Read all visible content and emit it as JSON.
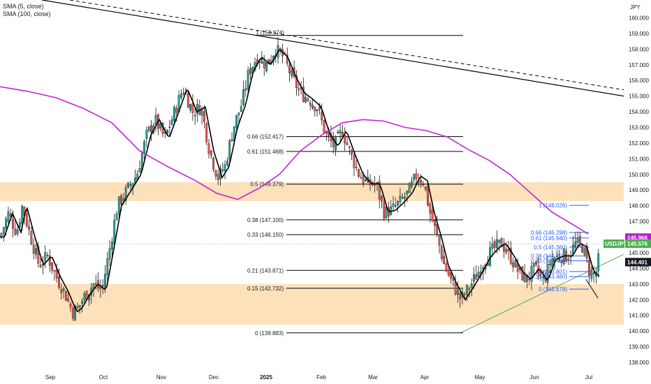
{
  "legend": {
    "sma5": "SMA (5, close)",
    "sma100": "SMA (100, close)"
  },
  "axis": {
    "unit": "JPY"
  },
  "colors": {
    "up": "#26a69a",
    "down": "#ef5350",
    "sma100": "#c026d3",
    "sma5": "#000000",
    "zone": "#fcdcae",
    "trend": "#4caf50",
    "fib_blue": "#2962ff",
    "tag_purple": "#b71cd4",
    "tag_green": "#4caf50",
    "tag_black": "#131722"
  },
  "chart_data": {
    "type": "candlestick",
    "symbol": "USDJPY",
    "ylim": [
      137.6,
      160.6
    ],
    "y_ticks": [
      "160.000",
      "159.000",
      "158.000",
      "157.000",
      "156.000",
      "155.000",
      "154.000",
      "153.000",
      "152.000",
      "151.000",
      "150.000",
      "149.000",
      "148.000",
      "147.000",
      "146.000",
      "145.000",
      "144.000",
      "143.000",
      "142.000",
      "141.000",
      "140.000",
      "139.000",
      "138.000"
    ],
    "x_labels": [
      {
        "label": "Sep",
        "t": 72
      },
      {
        "label": "Oct",
        "t": 148
      },
      {
        "label": "Nov",
        "t": 231
      },
      {
        "label": "Dec",
        "t": 306
      },
      {
        "label": "2025",
        "t": 381
      },
      {
        "label": "Feb",
        "t": 460
      },
      {
        "label": "Mar",
        "t": 534
      },
      {
        "label": "Apr",
        "t": 608
      },
      {
        "label": "May",
        "t": 687
      },
      {
        "label": "Jun",
        "t": 765
      },
      {
        "label": "Jul",
        "t": 843
      }
    ],
    "price_path": [
      [
        0,
        146.0
      ],
      [
        12,
        147.5
      ],
      [
        24,
        146.3
      ],
      [
        32,
        148.0
      ],
      [
        44,
        146.0
      ],
      [
        56,
        144.2
      ],
      [
        68,
        144.8
      ],
      [
        80,
        143.5
      ],
      [
        92,
        142.5
      ],
      [
        104,
        141.2
      ],
      [
        112,
        141.5
      ],
      [
        122,
        142.3
      ],
      [
        134,
        143.0
      ],
      [
        146,
        142.6
      ],
      [
        156,
        145.0
      ],
      [
        168,
        148.0
      ],
      [
        182,
        149.0
      ],
      [
        196,
        150.0
      ],
      [
        210,
        152.5
      ],
      [
        222,
        153.5
      ],
      [
        236,
        152.3
      ],
      [
        250,
        154.0
      ],
      [
        262,
        155.5
      ],
      [
        276,
        154.0
      ],
      [
        288,
        154.3
      ],
      [
        300,
        151.5
      ],
      [
        312,
        149.8
      ],
      [
        322,
        150.5
      ],
      [
        334,
        153.0
      ],
      [
        346,
        154.5
      ],
      [
        356,
        156.5
      ],
      [
        368,
        157.5
      ],
      [
        382,
        157.0
      ],
      [
        394,
        158.0
      ],
      [
        406,
        157.5
      ],
      [
        418,
        156.2
      ],
      [
        430,
        155.2
      ],
      [
        442,
        154.8
      ],
      [
        454,
        154.3
      ],
      [
        466,
        152.6
      ],
      [
        478,
        151.8
      ],
      [
        490,
        152.8
      ],
      [
        502,
        151.3
      ],
      [
        514,
        150.0
      ],
      [
        526,
        149.4
      ],
      [
        538,
        149.4
      ],
      [
        550,
        147.6
      ],
      [
        560,
        147.7
      ],
      [
        572,
        148.2
      ],
      [
        584,
        148.8
      ],
      [
        596,
        149.9
      ],
      [
        606,
        149.6
      ],
      [
        616,
        147.5
      ],
      [
        626,
        146.0
      ],
      [
        636,
        144.2
      ],
      [
        648,
        143.0
      ],
      [
        660,
        142.0
      ],
      [
        672,
        142.8
      ],
      [
        684,
        143.7
      ],
      [
        696,
        144.7
      ],
      [
        708,
        145.3
      ],
      [
        718,
        145.6
      ],
      [
        730,
        144.8
      ],
      [
        742,
        143.8
      ],
      [
        754,
        143.3
      ],
      [
        766,
        144.0
      ],
      [
        778,
        143.2
      ],
      [
        790,
        144.6
      ],
      [
        802,
        144.8
      ],
      [
        814,
        144.8
      ],
      [
        824,
        145.6
      ],
      [
        834,
        145.4
      ],
      [
        844,
        143.8
      ],
      [
        852,
        143.5
      ],
      [
        858,
        144.8
      ]
    ],
    "sma100_path": [
      [
        0,
        155.6
      ],
      [
        40,
        155.3
      ],
      [
        80,
        154.9
      ],
      [
        120,
        154.2
      ],
      [
        160,
        153.3
      ],
      [
        200,
        151.5
      ],
      [
        240,
        150.5
      ],
      [
        280,
        149.6
      ],
      [
        310,
        148.8
      ],
      [
        340,
        148.4
      ],
      [
        370,
        149.1
      ],
      [
        400,
        150.0
      ],
      [
        430,
        151.5
      ],
      [
        460,
        152.5
      ],
      [
        490,
        153.3
      ],
      [
        520,
        153.5
      ],
      [
        550,
        153.4
      ],
      [
        580,
        153.0
      ],
      [
        610,
        152.8
      ],
      [
        640,
        152.4
      ],
      [
        670,
        151.6
      ],
      [
        700,
        150.9
      ],
      [
        730,
        150.0
      ],
      [
        760,
        148.8
      ],
      [
        790,
        147.6
      ],
      [
        820,
        146.8
      ],
      [
        842,
        146.2
      ]
    ],
    "fib_levels": [
      {
        "label": "1 (158.874)",
        "value": 158.874
      },
      {
        "label": "0.66 (152.417)",
        "value": 152.417
      },
      {
        "label": "0.61 (151.468)",
        "value": 151.468
      },
      {
        "label": "0.5 (149.379)",
        "value": 149.379
      },
      {
        "label": "0.38 (147.100)",
        "value": 147.1
      },
      {
        "label": "0.33 (146.150)",
        "value": 146.15
      },
      {
        "label": "0.21 (143.871)",
        "value": 143.871
      },
      {
        "label": "0.15 (142.732)",
        "value": 142.732
      },
      {
        "label": "0 (139.883)",
        "value": 139.883
      }
    ],
    "small_fib_levels": [
      {
        "label": "1 (148.026)",
        "value": 148.026
      },
      {
        "label": "0.66 (146.298)",
        "value": 146.298
      },
      {
        "label": "0.61 (145.940)",
        "value": 145.94
      },
      {
        "label": "0.5 (145.360)",
        "value": 145.36
      },
      {
        "label": "0.38 (144.792)",
        "value": 144.792
      },
      {
        "label": "0.33 (144.480)",
        "value": 144.48
      },
      {
        "label": "0.21 (143.801)",
        "value": 143.801
      },
      {
        "label": "0.15 (143.480)",
        "value": 143.48
      },
      {
        "label": "0 (142.678)",
        "value": 142.678
      }
    ],
    "zones": [
      {
        "from": 148.3,
        "to": 149.5
      },
      {
        "from": 140.4,
        "to": 143.0
      }
    ],
    "tags": [
      {
        "text": "145.968",
        "value": 145.968,
        "color": "tag_purple"
      },
      {
        "text": "USDJPY",
        "value": 145.576,
        "color": "tag_green",
        "with": "145.576"
      },
      {
        "text": "144.401",
        "value": 144.401,
        "color": "tag_black"
      }
    ]
  }
}
